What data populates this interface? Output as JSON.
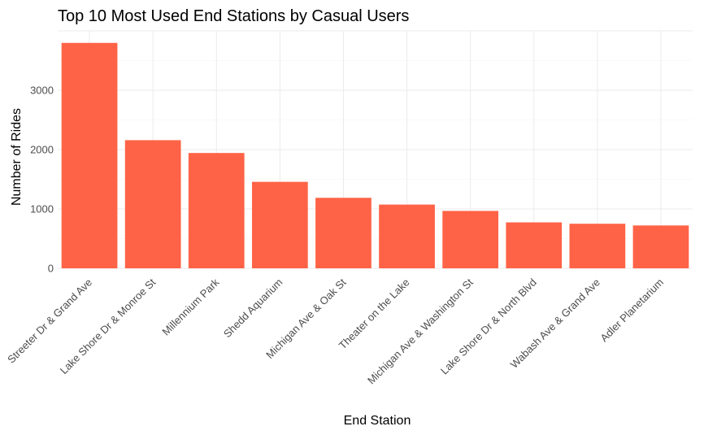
{
  "chart_data": {
    "type": "bar",
    "title": "Top 10 Most Used End Stations by Casual Users",
    "xlabel": "End Station",
    "ylabel": "Number of Rides",
    "categories": [
      "Streeter Dr & Grand Ave",
      "Lake Shore Dr & Monroe St",
      "Millennium Park",
      "Shedd Aquarium",
      "Michigan Ave & Oak St",
      "Theater on the Lake",
      "Michigan Ave & Washington St",
      "Lake Shore Dr & North Blvd",
      "Wabash Ave & Grand Ave",
      "Adler Planetarium"
    ],
    "values": [
      3798,
      2159,
      1943,
      1457,
      1188,
      1074,
      967,
      774,
      751,
      722
    ],
    "ylim": [
      0,
      4000
    ],
    "yticks": [
      0,
      1000,
      2000,
      3000
    ],
    "bar_color": "#ff6347",
    "grid": true,
    "legend": "none"
  }
}
